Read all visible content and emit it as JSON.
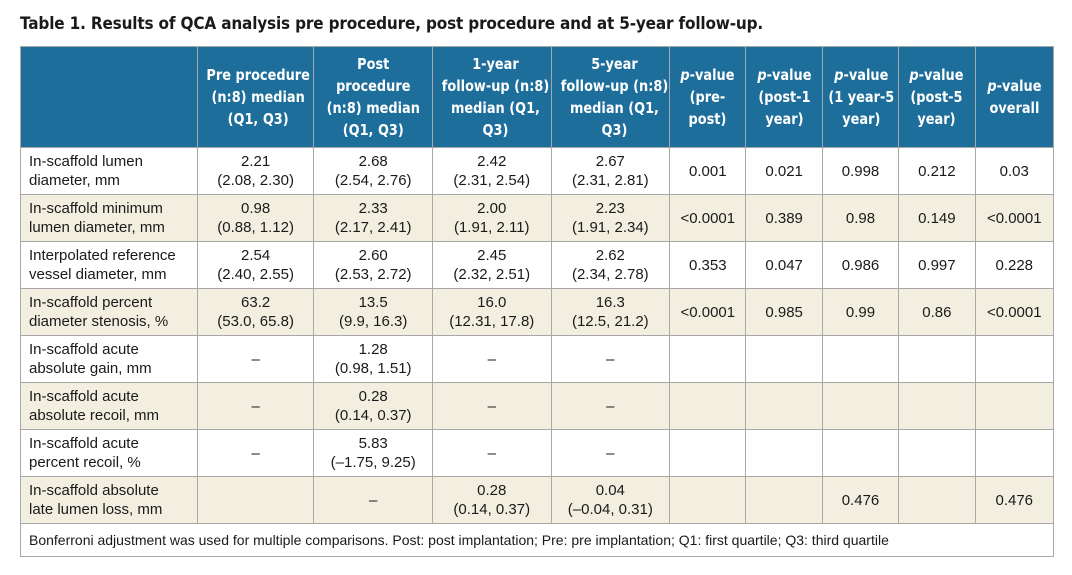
{
  "title": "Table 1. Results of QCA analysis pre procedure, post procedure and at 5-year follow-up.",
  "headers": {
    "pre": [
      "Pre procedure",
      "(n:8) median",
      "(Q1, Q3)"
    ],
    "post": [
      "Post",
      "procedure",
      "(n:8) median",
      "(Q1, Q3)"
    ],
    "fu1": [
      "1-year",
      "follow-up (n:8)",
      "median (Q1,",
      "Q3)"
    ],
    "fu5": [
      "5-year",
      "follow-up (n:8)",
      "median (Q1,",
      "Q3)"
    ],
    "p_prepost": {
      "italic": "p",
      "rest": [
        "-value",
        "(pre-",
        "post)"
      ]
    },
    "p_post1": {
      "italic": "p",
      "rest": [
        "-value",
        "(post-1",
        "year)"
      ]
    },
    "p_1y5y": {
      "italic": "p",
      "rest": [
        "-value",
        "(1 year-5",
        "year)"
      ]
    },
    "p_post5": {
      "italic": "p",
      "rest": [
        "-value",
        "(post-5",
        "year)"
      ]
    },
    "p_overall": {
      "italic": "p",
      "rest": [
        "-value",
        "overall"
      ]
    }
  },
  "rows": [
    {
      "label": [
        "In-scaffold lumen",
        "diameter, mm"
      ],
      "pre": [
        "2.21",
        "(2.08, 2.30)"
      ],
      "post": [
        "2.68",
        "(2.54, 2.76)"
      ],
      "fu1": [
        "2.42",
        "(2.31, 2.54)"
      ],
      "fu5": [
        "2.67",
        "(2.31, 2.81)"
      ],
      "p": [
        "0.001",
        "0.021",
        "0.998",
        "0.212",
        "0.03"
      ]
    },
    {
      "label": [
        "In-scaffold minimum",
        "lumen diameter, mm"
      ],
      "pre": [
        "0.98",
        "(0.88, 1.12)"
      ],
      "post": [
        "2.33",
        "(2.17, 2.41)"
      ],
      "fu1": [
        "2.00",
        "(1.91, 2.11)"
      ],
      "fu5": [
        "2.23",
        "(1.91, 2.34)"
      ],
      "p": [
        "<0.0001",
        "0.389",
        "0.98",
        "0.149",
        "<0.0001"
      ]
    },
    {
      "label": [
        "Interpolated reference",
        "vessel diameter, mm"
      ],
      "pre": [
        "2.54",
        "(2.40, 2.55)"
      ],
      "post": [
        "2.60",
        "(2.53, 2.72)"
      ],
      "fu1": [
        "2.45",
        "(2.32, 2.51)"
      ],
      "fu5": [
        "2.62",
        "(2.34, 2.78)"
      ],
      "p": [
        "0.353",
        "0.047",
        "0.986",
        "0.997",
        "0.228"
      ]
    },
    {
      "label": [
        "In-scaffold percent",
        "diameter stenosis, %"
      ],
      "pre": [
        "63.2",
        "(53.0, 65.8)"
      ],
      "post": [
        "13.5",
        "(9.9, 16.3)"
      ],
      "fu1": [
        "16.0",
        "(12.31, 17.8)"
      ],
      "fu5": [
        "16.3",
        "(12.5, 21.2)"
      ],
      "p": [
        "<0.0001",
        "0.985",
        "0.99",
        "0.86",
        "<0.0001"
      ]
    },
    {
      "label": [
        "In-scaffold acute",
        "absolute gain, mm"
      ],
      "pre": [
        "–",
        ""
      ],
      "post": [
        "1.28",
        "(0.98, 1.51)"
      ],
      "fu1": [
        "–",
        ""
      ],
      "fu5": [
        "–",
        ""
      ],
      "p": [
        "",
        "",
        "",
        "",
        ""
      ]
    },
    {
      "label": [
        "In-scaffold acute",
        "absolute recoil, mm"
      ],
      "pre": [
        "–",
        ""
      ],
      "post": [
        "0.28",
        "(0.14, 0.37)"
      ],
      "fu1": [
        "–",
        ""
      ],
      "fu5": [
        "–",
        ""
      ],
      "p": [
        "",
        "",
        "",
        "",
        ""
      ]
    },
    {
      "label": [
        "In-scaffold acute",
        "percent recoil, %"
      ],
      "pre": [
        "–",
        ""
      ],
      "post": [
        "5.83",
        "(–1.75, 9.25)"
      ],
      "fu1": [
        "–",
        ""
      ],
      "fu5": [
        "–",
        ""
      ],
      "p": [
        "",
        "",
        "",
        "",
        ""
      ]
    },
    {
      "label": [
        "In-scaffold absolute",
        "late lumen loss, mm"
      ],
      "pre": [
        "",
        ""
      ],
      "post": [
        "–",
        ""
      ],
      "fu1": [
        "0.28",
        "(0.14, 0.37)"
      ],
      "fu5": [
        "0.04",
        "(–0.04, 0.31)"
      ],
      "p": [
        "",
        "",
        "0.476",
        "",
        "0.476"
      ]
    }
  ],
  "footnote": "Bonferroni adjustment was used for multiple comparisons. Post: post implantation; Pre: pre implantation; Q1: first quartile; Q3: third quartile",
  "colors": {
    "header_bg": "#1e6e9c",
    "stripe_bg": "#f3efe0"
  }
}
